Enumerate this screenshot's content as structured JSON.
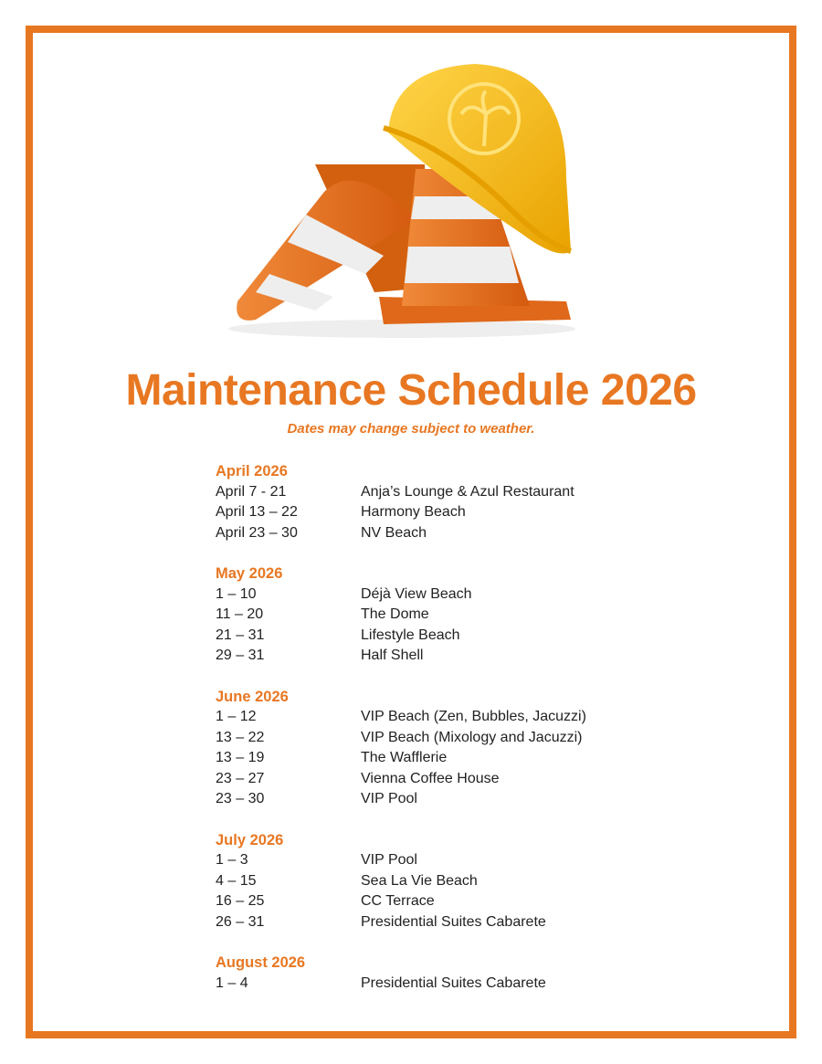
{
  "colors": {
    "accent": "#E87722",
    "text": "#222222"
  },
  "illustration": {
    "icons": [
      "traffic-cone-icon",
      "hard-hat-icon",
      "palm-tree-icon"
    ]
  },
  "title": "Maintenance Schedule 2026",
  "subtitle": "Dates may change subject to weather.",
  "sections": [
    {
      "heading": "April 2026",
      "rows": [
        {
          "dates": "April 7 - 21",
          "venue": "Anja’s Lounge & Azul Restaurant"
        },
        {
          "dates": "April 13 – 22",
          "venue": "Harmony Beach"
        },
        {
          "dates": "April 23 – 30",
          "venue": "NV Beach"
        }
      ]
    },
    {
      "heading": "May 2026",
      "rows": [
        {
          "dates": "1 – 10",
          "venue": "Déjà View Beach"
        },
        {
          "dates": "11 – 20",
          "venue": "The Dome"
        },
        {
          "dates": "21 – 31",
          "venue": "Lifestyle Beach"
        },
        {
          "dates": "29 – 31",
          "venue": "Half Shell"
        }
      ]
    },
    {
      "heading": "June 2026",
      "rows": [
        {
          "dates": "1 – 12",
          "venue": "VIP Beach (Zen, Bubbles, Jacuzzi)"
        },
        {
          "dates": "13 – 22",
          "venue": "VIP Beach (Mixology and Jacuzzi)"
        },
        {
          "dates": "13 – 19",
          "venue": "The Wafflerie"
        },
        {
          "dates": "23 – 27",
          "venue": "Vienna Coffee House"
        },
        {
          "dates": "23 – 30",
          "venue": "VIP Pool"
        }
      ]
    },
    {
      "heading": "July 2026",
      "rows": [
        {
          "dates": "1 – 3",
          "venue": "VIP Pool"
        },
        {
          "dates": "4 – 15",
          "venue": "Sea La Vie Beach"
        },
        {
          "dates": "16 – 25",
          "venue": "CC Terrace"
        },
        {
          "dates": "26 – 31",
          "venue": "Presidential Suites Cabarete"
        }
      ]
    },
    {
      "heading": "August 2026",
      "rows": [
        {
          "dates": "1 – 4",
          "venue": "Presidential Suites Cabarete"
        }
      ]
    }
  ]
}
